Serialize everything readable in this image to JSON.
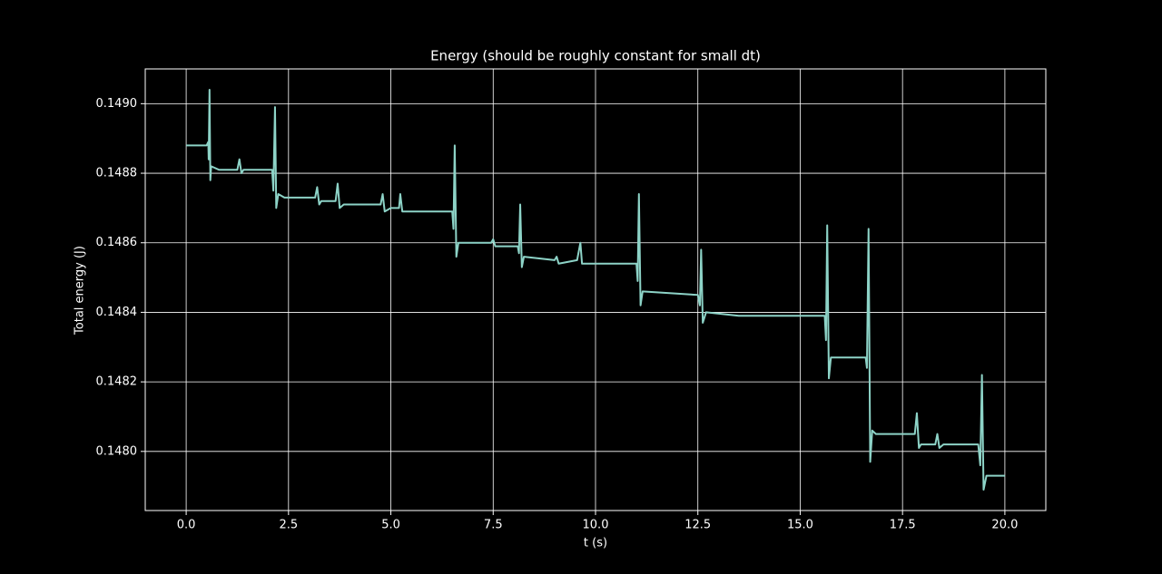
{
  "chart_data": {
    "type": "line",
    "title": "Energy (should be roughly constant for small dt)",
    "x_label": "t (s)",
    "y_label": "Total energy (J)",
    "xlim": [
      -1.0,
      21.0
    ],
    "ylim": [
      0.14783,
      0.1491
    ],
    "xticks": [
      {
        "value": 0,
        "label": "0.0"
      },
      2.5,
      {
        "value": 5,
        "label": "5.0"
      },
      7.5,
      {
        "value": 10,
        "label": "10.0"
      },
      12.5,
      {
        "value": 15,
        "label": "15.0"
      },
      17.5,
      {
        "value": 20,
        "label": "20.0"
      }
    ],
    "yticks": [
      {
        "value": 0.148,
        "label": "0.1480"
      },
      {
        "value": 0.1482,
        "label": "0.1482"
      },
      {
        "value": 0.1484,
        "label": "0.1484"
      },
      {
        "value": 0.1486,
        "label": "0.1486"
      },
      {
        "value": 0.1488,
        "label": "0.1488"
      },
      {
        "value": 0.149,
        "label": "0.1490"
      }
    ],
    "grid": true,
    "x": [
      0,
      0.5,
      0.54,
      0.55,
      0.57,
      0.59,
      0.61,
      0.8,
      1.25,
      1.3,
      1.35,
      1.4,
      2.1,
      2.13,
      2.17,
      2.2,
      2.25,
      2.4,
      3.15,
      3.2,
      3.25,
      3.3,
      3.65,
      3.7,
      3.75,
      3.85,
      4.75,
      4.8,
      4.85,
      5.0,
      5.2,
      5.23,
      5.28,
      5.4,
      6.5,
      6.53,
      6.56,
      6.6,
      6.65,
      7.45,
      7.5,
      7.55,
      8.1,
      8.13,
      8.16,
      8.2,
      8.25,
      9.0,
      9.05,
      9.1,
      9.55,
      9.63,
      9.67,
      9.8,
      11.0,
      11.03,
      11.06,
      11.1,
      11.15,
      12.5,
      12.55,
      12.58,
      12.62,
      12.7,
      13.5,
      15.6,
      15.63,
      15.66,
      15.7,
      15.75,
      16.6,
      16.63,
      16.67,
      16.71,
      16.76,
      16.85,
      17.8,
      17.85,
      17.9,
      17.95,
      18.3,
      18.35,
      18.4,
      18.5,
      19.35,
      19.4,
      19.44,
      19.48,
      19.55,
      20.0
    ],
    "series": [
      {
        "color": "#8dd3c7",
        "values": [
          0.14888,
          0.14888,
          0.14889,
          0.14884,
          0.14904,
          0.14878,
          0.14882,
          0.14881,
          0.14881,
          0.14884,
          0.1488,
          0.14881,
          0.14881,
          0.14875,
          0.14899,
          0.1487,
          0.14874,
          0.14873,
          0.14873,
          0.14876,
          0.14871,
          0.14872,
          0.14872,
          0.14877,
          0.1487,
          0.14871,
          0.14871,
          0.14874,
          0.14869,
          0.1487,
          0.1487,
          0.14874,
          0.14869,
          0.14869,
          0.14869,
          0.14864,
          0.14888,
          0.14856,
          0.1486,
          0.1486,
          0.14861,
          0.14859,
          0.14859,
          0.14857,
          0.14871,
          0.14853,
          0.14856,
          0.14855,
          0.14856,
          0.14854,
          0.14855,
          0.1486,
          0.14854,
          0.14854,
          0.14854,
          0.14849,
          0.14874,
          0.14842,
          0.14846,
          0.14845,
          0.14842,
          0.14858,
          0.14837,
          0.1484,
          0.14839,
          0.14839,
          0.14832,
          0.14865,
          0.14821,
          0.14827,
          0.14827,
          0.14824,
          0.14864,
          0.14797,
          0.14806,
          0.14805,
          0.14805,
          0.14811,
          0.14801,
          0.14802,
          0.14802,
          0.14805,
          0.14801,
          0.14802,
          0.14802,
          0.14796,
          0.14822,
          0.14789,
          0.14793,
          0.14793
        ]
      }
    ]
  }
}
